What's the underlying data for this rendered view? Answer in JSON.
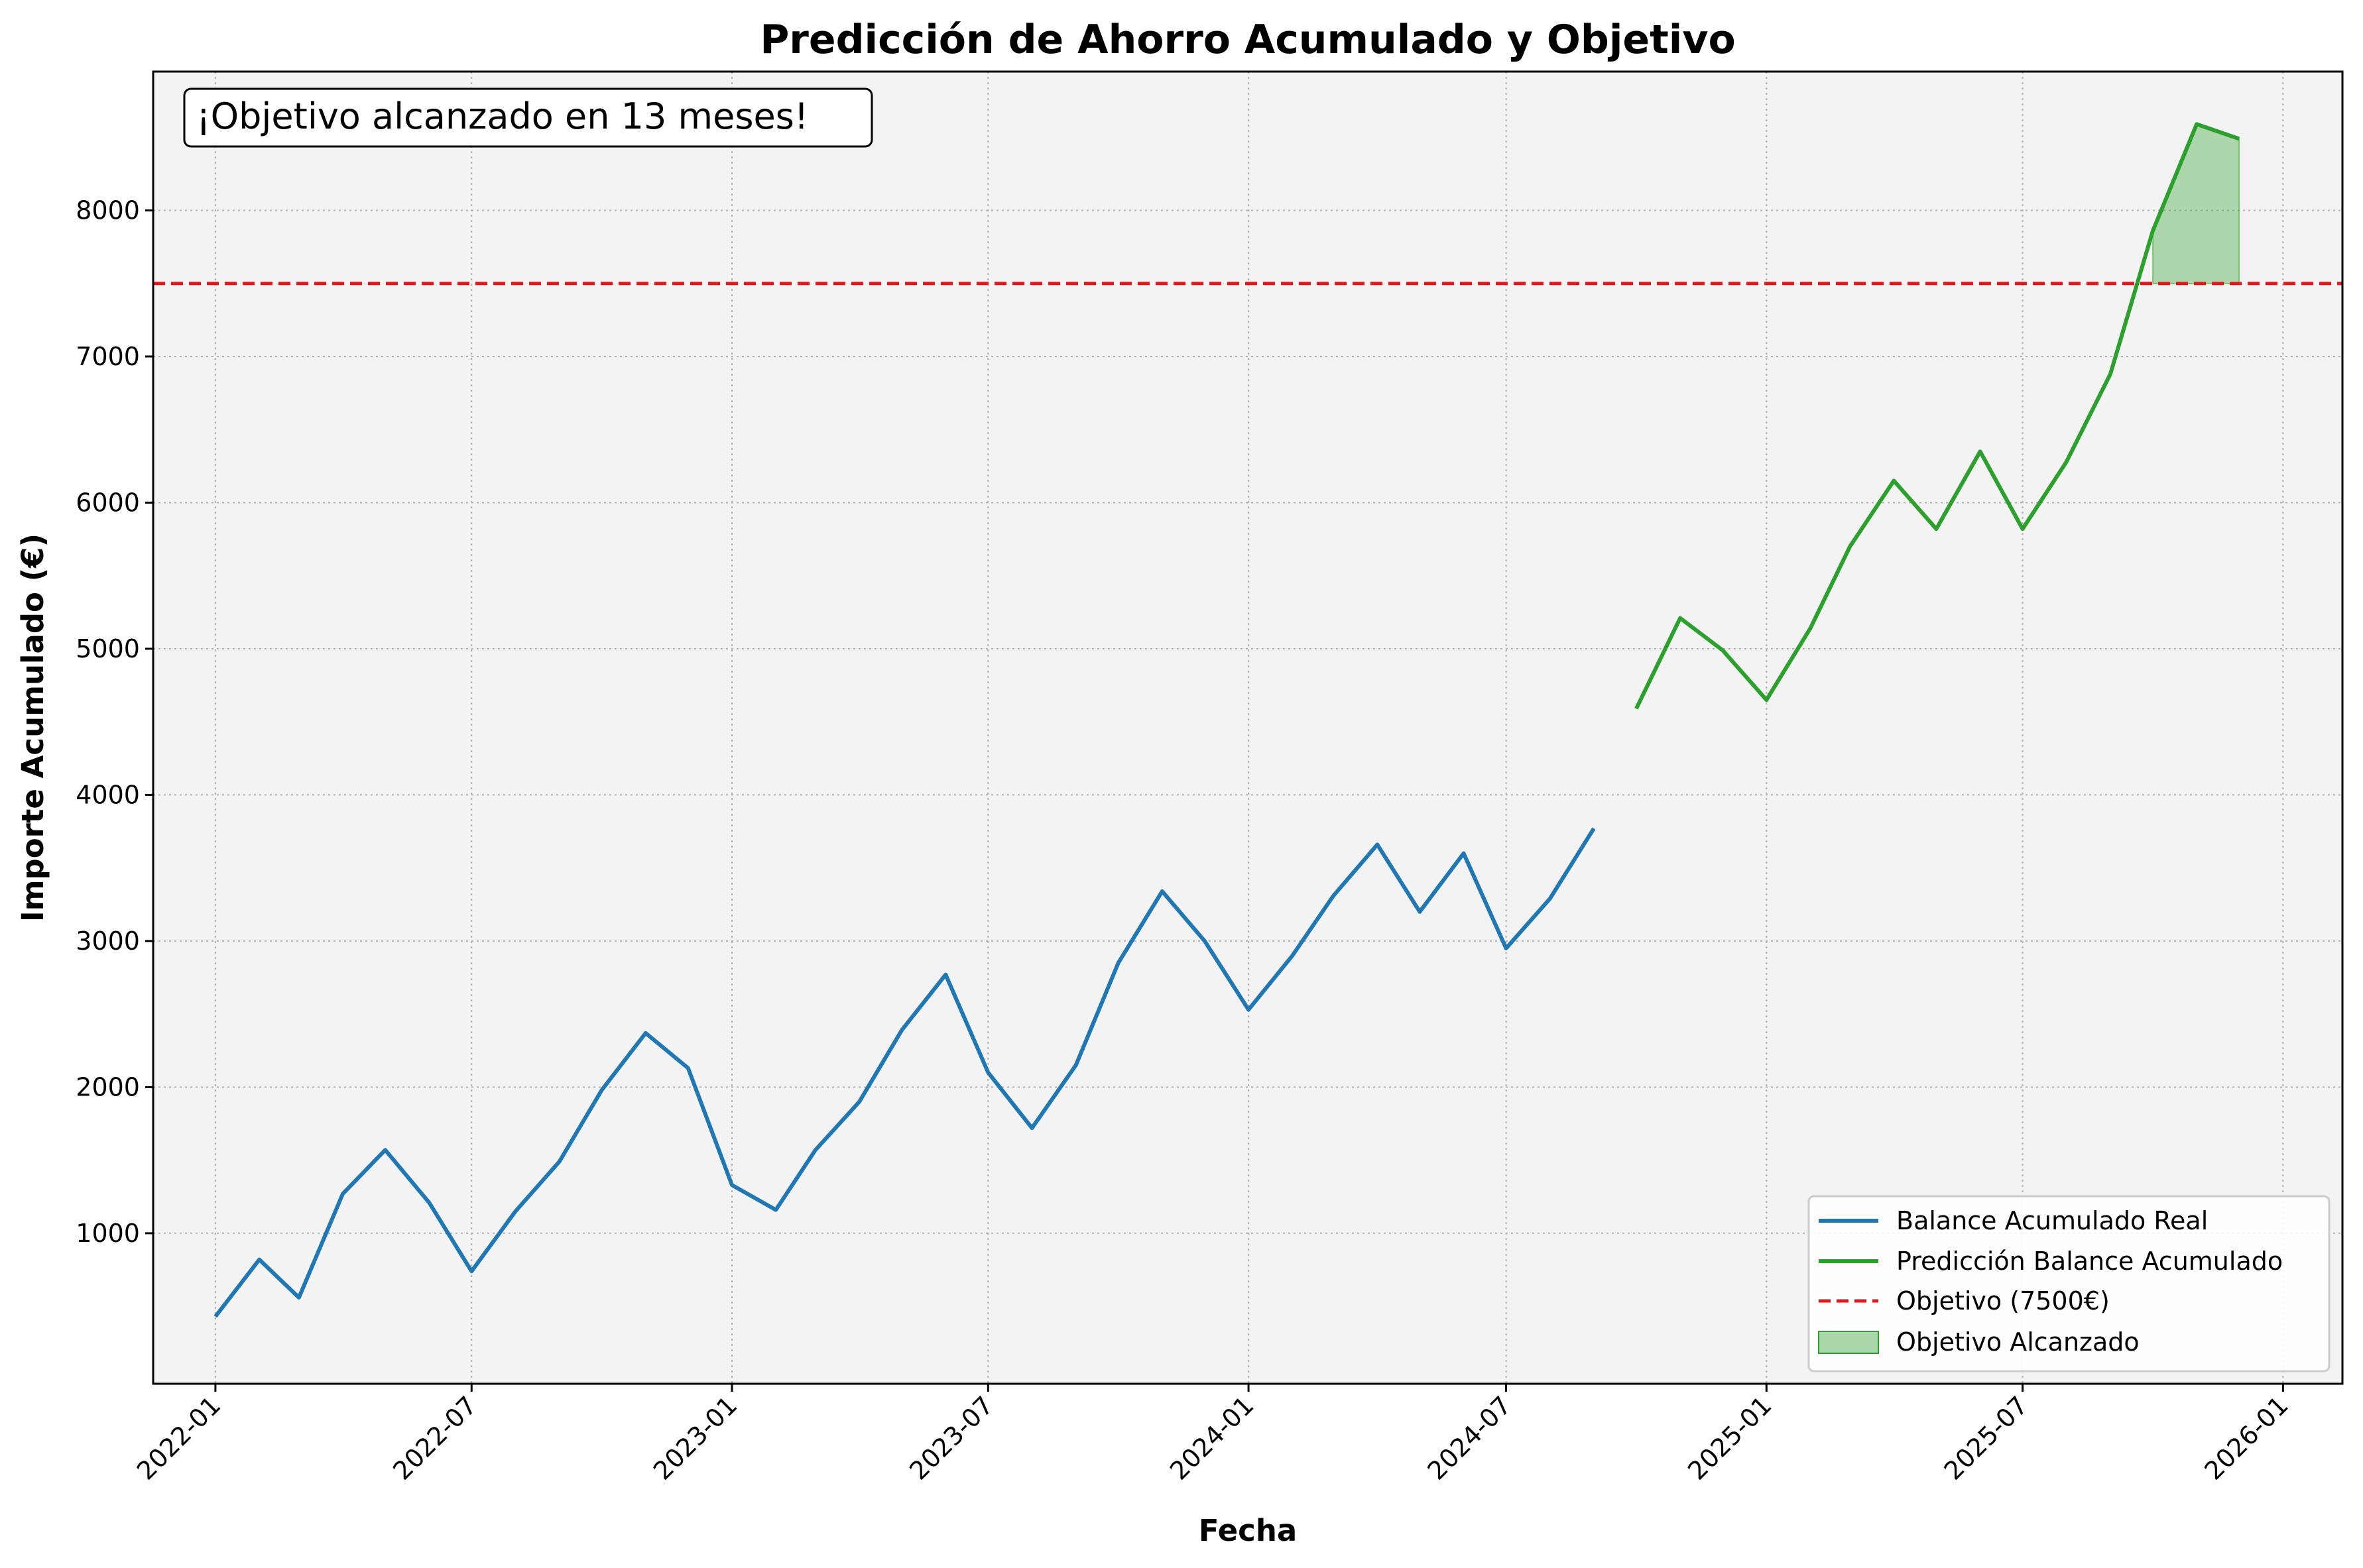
{
  "chart_data": {
    "type": "line",
    "title": "Predicción de Ahorro Acumulado y Objetivo",
    "xlabel": "Fecha",
    "ylabel": "Importe Acumulado (€)",
    "x_ticks": [
      "2022-01",
      "2022-07",
      "2023-01",
      "2023-07",
      "2024-01",
      "2024-07",
      "2025-01",
      "2025-07",
      "2026-01"
    ],
    "y_ticks": [
      1000,
      2000,
      3000,
      4000,
      5000,
      6000,
      7000,
      8000
    ],
    "xlim": [
      "2021-11-18",
      "2026-02-12"
    ],
    "ylim": [
      -30,
      8950
    ],
    "grid": true,
    "legend_position": "lower right",
    "annotation": "¡Objetivo alcanzado en 13 meses!",
    "target": {
      "label": "Objetivo (7500€)",
      "value": 7500,
      "color": "#e8151b"
    },
    "fill": {
      "label": "Objetivo Alcanzado",
      "from": "2025-10-01",
      "to": "2025-12-01",
      "color": "#2ca02c"
    },
    "series": [
      {
        "name": "Balance Acumulado Real",
        "color": "#1f77b4",
        "x": [
          "2022-01-01",
          "2022-02-01",
          "2022-03-01",
          "2022-04-01",
          "2022-05-01",
          "2022-06-01",
          "2022-07-01",
          "2022-08-01",
          "2022-09-01",
          "2022-10-01",
          "2022-11-01",
          "2022-12-01",
          "2023-01-01",
          "2023-02-01",
          "2023-03-01",
          "2023-04-01",
          "2023-05-01",
          "2023-06-01",
          "2023-07-01",
          "2023-08-01",
          "2023-09-01",
          "2023-10-01",
          "2023-11-01",
          "2023-12-01",
          "2024-01-01",
          "2024-02-01",
          "2024-03-01",
          "2024-04-01",
          "2024-05-01",
          "2024-06-01",
          "2024-07-01",
          "2024-08-01",
          "2024-09-01"
        ],
        "values": [
          430,
          820,
          560,
          1270,
          1570,
          1210,
          740,
          1150,
          1490,
          1980,
          2370,
          2130,
          1330,
          1160,
          1570,
          1900,
          2390,
          2770,
          2100,
          1720,
          2150,
          2850,
          3340,
          3000,
          2530,
          2900,
          3310,
          3660,
          3200,
          3600,
          2950,
          3290,
          3770
        ]
      },
      {
        "name": "Predicción Balance Acumulado",
        "color": "#2ca02c",
        "x": [
          "2024-10-01",
          "2024-11-01",
          "2024-12-01",
          "2025-01-01",
          "2025-02-01",
          "2025-03-01",
          "2025-04-01",
          "2025-05-01",
          "2025-06-01",
          "2025-07-01",
          "2025-08-01",
          "2025-09-01",
          "2025-10-01",
          "2025-11-01",
          "2025-12-01"
        ],
        "values": [
          4590,
          5210,
          4990,
          4650,
          5140,
          5700,
          6150,
          5820,
          6350,
          5820,
          6280,
          6880,
          7860,
          8590,
          8490
        ]
      }
    ]
  }
}
